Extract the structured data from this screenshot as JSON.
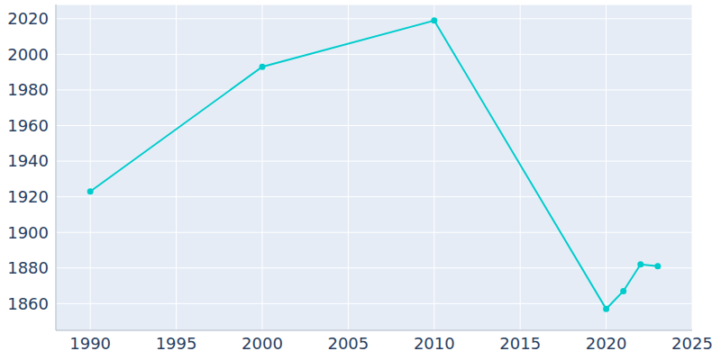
{
  "chart_data": {
    "type": "line",
    "x": [
      1990,
      2000,
      2010,
      2020,
      2021,
      2022,
      2023
    ],
    "values": [
      1923,
      1993,
      2019,
      1857,
      1867,
      1882,
      1881
    ],
    "color": "#00cccc",
    "marker": "circle",
    "xlim": [
      1988,
      2025
    ],
    "xticks": [
      1990,
      1995,
      2000,
      2005,
      2010,
      2015,
      2020,
      2025
    ],
    "ylim": [
      1845,
      2028
    ],
    "yticks": [
      1860,
      1880,
      1900,
      1920,
      1940,
      1960,
      1980,
      2000,
      2020
    ],
    "grid": true
  }
}
